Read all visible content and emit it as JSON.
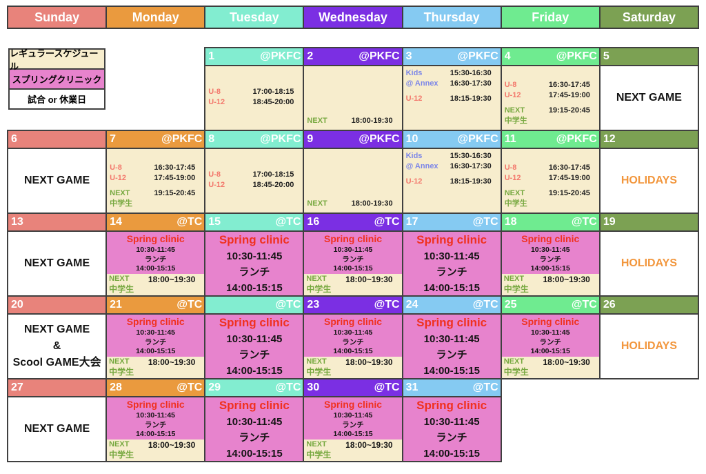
{
  "days": [
    {
      "label": "Sunday",
      "color": "#E8837B"
    },
    {
      "label": "Monday",
      "color": "#EA9A3E"
    },
    {
      "label": "Tuesday",
      "color": "#82EDD0"
    },
    {
      "label": "Wednesday",
      "color": "#7B2FE3"
    },
    {
      "label": "Thursday",
      "color": "#85CAF2"
    },
    {
      "label": "Friday",
      "color": "#6FEB90"
    },
    {
      "label": "Saturday",
      "color": "#7CA153"
    }
  ],
  "legend": {
    "items": [
      {
        "label": "レギュラースケジュール",
        "bg": "#F7EDCD"
      },
      {
        "label": "スプリングクリニック",
        "bg": "#E783CD"
      },
      {
        "label": "試合 or 休業日",
        "bg": "#FFFFFF"
      }
    ]
  },
  "label_colors": {
    "red": "#F3786C",
    "green": "#76A83F",
    "blue": "#7C86E8"
  },
  "colors": {
    "border": "#404040",
    "cream": "#F7EDCD",
    "pink": "#E783CD",
    "spring_red": "#F0311F",
    "holiday_orange": "#F2963C"
  },
  "clinic": {
    "title": "Spring clinic",
    "morning": "10:30-11:45",
    "lunch": "ランチ",
    "afternoon": "14:00-15:15",
    "evening": {
      "label": "NEXT",
      "time": "18:00~19:30",
      "group": "中学生"
    }
  },
  "weeks": [
    [
      {
        "type": "legend"
      },
      {
        "type": "blank"
      },
      {
        "type": "schedule",
        "date": "1",
        "venue": "@PKFC",
        "align": "middle",
        "lines": [
          {
            "label": "U-8",
            "color": "red",
            "time": "17:00-18:15"
          },
          {
            "label": "U-12",
            "color": "red",
            "time": "18:45-20:00"
          }
        ]
      },
      {
        "type": "schedule",
        "date": "2",
        "venue": "@PKFC",
        "align": "bottom",
        "lines": [
          {
            "label": "NEXT",
            "color": "green",
            "time": "18:00-19:30"
          }
        ]
      },
      {
        "type": "schedule",
        "date": "3",
        "venue": "@PKFC",
        "align": "top",
        "lines": [
          {
            "label": "Kids",
            "color": "blue",
            "time": "15:30-16:30"
          },
          {
            "label": "@ Annex",
            "color": "blue",
            "time": "16:30-17:30"
          },
          {
            "label": "U-12",
            "color": "red",
            "time": "18:15-19:30",
            "gap": true
          }
        ]
      },
      {
        "type": "schedule",
        "date": "4",
        "venue": "@PKFC",
        "align": "bottom",
        "lines": [
          {
            "label": "U-8",
            "color": "red",
            "time": "16:30-17:45"
          },
          {
            "label": "U-12",
            "color": "red",
            "time": "17:45-19:00"
          },
          {
            "label": "NEXT",
            "color": "green",
            "time": "19:15-20:45",
            "gap": true
          },
          {
            "label": "中学生",
            "color": "green",
            "time": ""
          }
        ]
      },
      {
        "type": "note",
        "date": "5",
        "venue": "",
        "style": "black",
        "lines": [
          "NEXT GAME"
        ]
      }
    ],
    [
      {
        "type": "note",
        "date": "6",
        "venue": "",
        "style": "black",
        "lines": [
          "NEXT GAME"
        ]
      },
      {
        "type": "schedule",
        "date": "7",
        "venue": "@PKFC",
        "align": "bottom",
        "lines": [
          {
            "label": "U-8",
            "color": "red",
            "time": "16:30-17:45"
          },
          {
            "label": "U-12",
            "color": "red",
            "time": "17:45-19:00"
          },
          {
            "label": "NEXT",
            "color": "green",
            "time": "19:15-20:45",
            "gap": true
          },
          {
            "label": "中学生",
            "color": "green",
            "time": ""
          }
        ]
      },
      {
        "type": "schedule",
        "date": "8",
        "venue": "@PKFC",
        "align": "middle",
        "lines": [
          {
            "label": "U-8",
            "color": "red",
            "time": "17:00-18:15"
          },
          {
            "label": "U-12",
            "color": "red",
            "time": "18:45-20:00"
          }
        ]
      },
      {
        "type": "schedule",
        "date": "9",
        "venue": "@PKFC",
        "align": "bottom",
        "lines": [
          {
            "label": "NEXT",
            "color": "green",
            "time": "18:00-19:30"
          }
        ]
      },
      {
        "type": "schedule",
        "date": "10",
        "venue": "@PKFC",
        "align": "top",
        "lines": [
          {
            "label": "Kids",
            "color": "blue",
            "time": "15:30-16:30"
          },
          {
            "label": "@ Annex",
            "color": "blue",
            "time": "16:30-17:30"
          },
          {
            "label": "U-12",
            "color": "red",
            "time": "18:15-19:30",
            "gap": true
          }
        ]
      },
      {
        "type": "schedule",
        "date": "11",
        "venue": "@PKFC",
        "align": "bottom",
        "lines": [
          {
            "label": "U-8",
            "color": "red",
            "time": "16:30-17:45"
          },
          {
            "label": "U-12",
            "color": "red",
            "time": "17:45-19:00"
          },
          {
            "label": "NEXT",
            "color": "green",
            "time": "19:15-20:45",
            "gap": true
          },
          {
            "label": "中学生",
            "color": "green",
            "time": ""
          }
        ]
      },
      {
        "type": "note",
        "date": "12",
        "venue": "",
        "style": "holiday",
        "lines": [
          "HOLIDAYS"
        ]
      }
    ],
    [
      {
        "type": "note",
        "date": "13",
        "venue": "",
        "style": "black",
        "lines": [
          "NEXT GAME"
        ]
      },
      {
        "type": "clinic_split",
        "date": "14",
        "venue": "@TC"
      },
      {
        "type": "clinic_full",
        "date": "15",
        "venue": "@TC"
      },
      {
        "type": "clinic_split",
        "date": "16",
        "venue": "@TC"
      },
      {
        "type": "clinic_full",
        "date": "17",
        "venue": "@TC"
      },
      {
        "type": "clinic_split",
        "date": "18",
        "venue": "@TC"
      },
      {
        "type": "note",
        "date": "19",
        "venue": "",
        "style": "holiday",
        "lines": [
          "HOLIDAYS"
        ]
      }
    ],
    [
      {
        "type": "note",
        "date": "20",
        "venue": "",
        "style": "black",
        "lines": [
          "NEXT GAME",
          "&",
          "Scool GAME大会"
        ]
      },
      {
        "type": "clinic_split",
        "date": "21",
        "venue": "@TC"
      },
      {
        "type": "clinic_full",
        "date": "",
        "venue": "@TC"
      },
      {
        "type": "clinic_split",
        "date": "23",
        "venue": "@TC"
      },
      {
        "type": "clinic_full",
        "date": "24",
        "venue": "@TC"
      },
      {
        "type": "clinic_split",
        "date": "25",
        "venue": "@TC"
      },
      {
        "type": "note",
        "date": "26",
        "venue": "",
        "style": "holiday",
        "lines": [
          "HOLIDAYS"
        ]
      }
    ],
    [
      {
        "type": "note",
        "date": "27",
        "venue": "",
        "style": "black",
        "lines": [
          "NEXT GAME"
        ]
      },
      {
        "type": "clinic_split",
        "date": "28",
        "venue": "@TC"
      },
      {
        "type": "clinic_full",
        "date": "29",
        "venue": "@TC"
      },
      {
        "type": "clinic_split",
        "date": "30",
        "venue": "@TC"
      },
      {
        "type": "clinic_full",
        "date": "31",
        "venue": "@TC"
      },
      {
        "type": "blank"
      },
      {
        "type": "blank"
      }
    ]
  ]
}
